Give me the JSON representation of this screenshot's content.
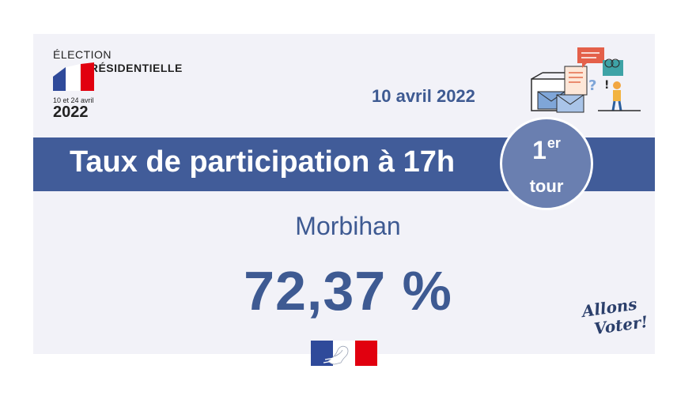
{
  "logo": {
    "line1": "ÉLECTION",
    "line2": "PRÉSIDENTIELLE",
    "dates": "10 et 24 avril",
    "year": "2022"
  },
  "date": "10 avril 2022",
  "banner": {
    "title": "Taux de participation à 17h"
  },
  "round": {
    "number": "1",
    "suffix": "er",
    "word": "tour"
  },
  "department": "Morbihan",
  "participation": "72,37 %",
  "slogan": {
    "line1": "Allons",
    "line2": "Voter!"
  },
  "colors": {
    "primary": "#415c99",
    "text_blue": "#3e5a92",
    "badge": "#6a7fb0",
    "card_bg": "#f2f2f8",
    "flag_blue": "#2f4a9a",
    "flag_red": "#e1000f"
  },
  "icons": [
    "french-flag-icon",
    "ballot-illustration-icon",
    "marianne-logo-icon"
  ]
}
